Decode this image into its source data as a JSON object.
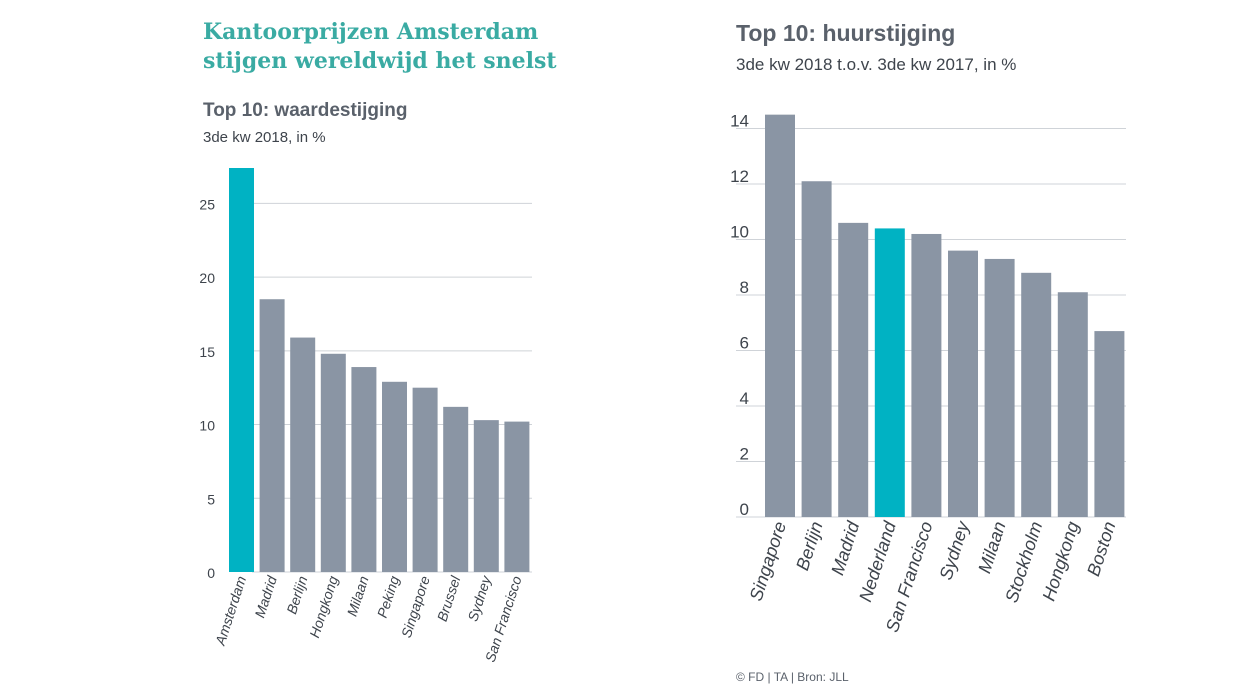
{
  "headline": "Kantoorprijzen Amsterdam stijgen wereldwijd het snelst",
  "source": "© FD | TA | Bron: JLL",
  "colors": {
    "bar": "#8a95a4",
    "highlight": "#00b2c3",
    "headline": "#3aaba3"
  },
  "chart_data": [
    {
      "type": "bar",
      "title": "Top 10: waardestijging",
      "subtitle": "3de kw 2018, in %",
      "categories": [
        "Amsterdam",
        "Madrid",
        "Berlijn",
        "Hongkong",
        "Milaan",
        "Peking",
        "Singapore",
        "Brussel",
        "Sydney",
        "San Francisco"
      ],
      "values": [
        27.4,
        18.5,
        15.9,
        14.8,
        13.9,
        12.9,
        12.5,
        11.2,
        10.3,
        10.2
      ],
      "highlight": "Amsterdam",
      "yticks": [
        0,
        5,
        10,
        15,
        20,
        25
      ],
      "ylim": [
        0,
        27.4
      ],
      "xlabel": "",
      "ylabel": ""
    },
    {
      "type": "bar",
      "title": "Top 10: huurstijging",
      "subtitle": "3de kw 2018 t.o.v. 3de kw 2017, in %",
      "categories": [
        "Singapore",
        "Berlijn",
        "Madrid",
        "Nederland",
        "San Francisco",
        "Sydney",
        "Milaan",
        "Stockholm",
        "Hongkong",
        "Boston"
      ],
      "values": [
        14.5,
        12.1,
        10.6,
        10.4,
        10.2,
        9.6,
        9.3,
        8.8,
        8.1,
        6.7
      ],
      "highlight": "Nederland",
      "yticks": [
        0,
        2,
        4,
        6,
        8,
        10,
        12,
        14
      ],
      "ylim": [
        0,
        15.1
      ],
      "xlabel": "",
      "ylabel": ""
    }
  ]
}
